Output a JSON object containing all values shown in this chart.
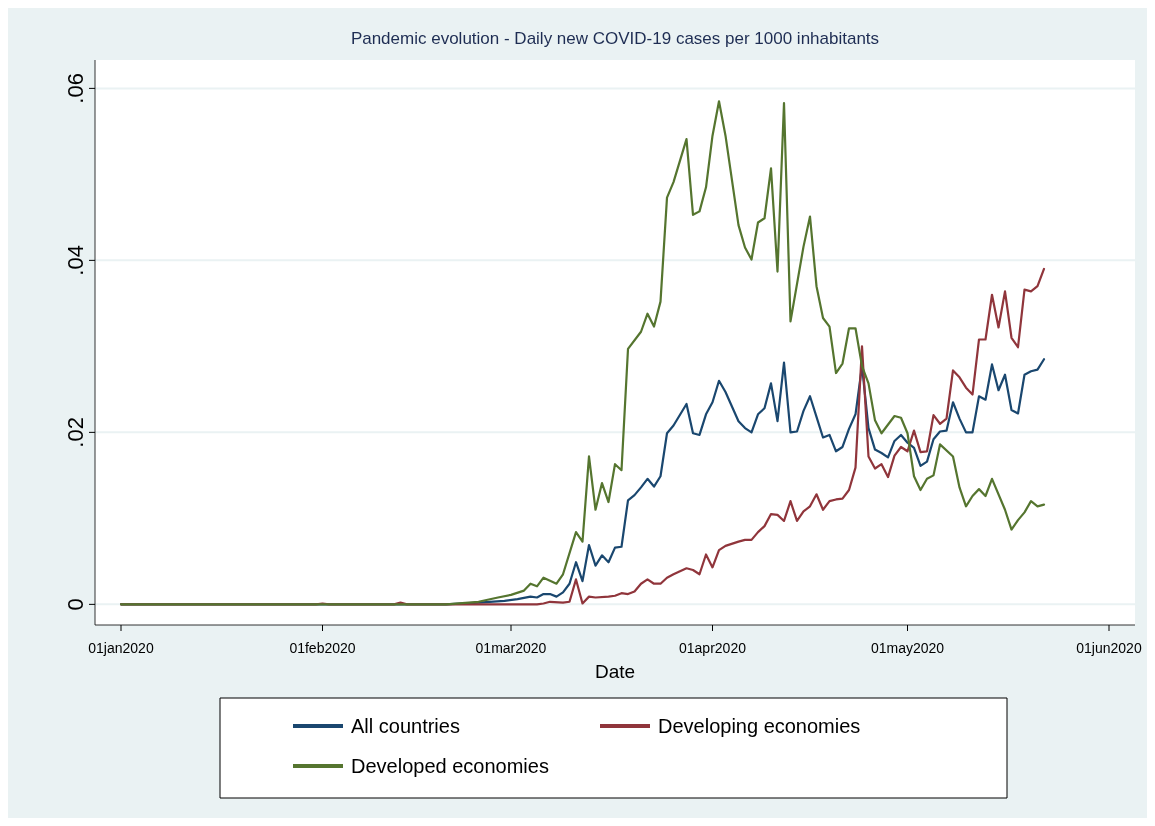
{
  "chart_data": {
    "type": "line",
    "title": "Pandemic evolution - Daily new COVID-19 cases per 1000 inhabitants",
    "xlabel": "Date",
    "xlim": [
      "2019-12-28",
      "2020-06-05"
    ],
    "ylim": [
      -0.0024,
      0.0633
    ],
    "xticks": [
      {
        "value": "2020-01-01",
        "label": "01jan2020"
      },
      {
        "value": "2020-02-01",
        "label": "01feb2020"
      },
      {
        "value": "2020-03-01",
        "label": "01mar2020"
      },
      {
        "value": "2020-04-01",
        "label": "01apr2020"
      },
      {
        "value": "2020-05-01",
        "label": "01may2020"
      },
      {
        "value": "2020-06-01",
        "label": "01jun2020"
      }
    ],
    "yticks": [
      0,
      {
        "value": 0.02,
        "label": ".02"
      },
      {
        "value": 0.04,
        "label": ".04"
      },
      {
        "value": 0.06,
        "label": ".06"
      }
    ],
    "grid": "y",
    "legend": "bottom",
    "line_style": "solid",
    "marker": "none",
    "series": [
      {
        "name": "All countries",
        "color": "#1a476f",
        "x": [
          "2020-01-01",
          "2020-02-20",
          "2020-02-25",
          "2020-02-29",
          "2020-03-02",
          "2020-03-04",
          "2020-03-05",
          "2020-03-06",
          "2020-03-07",
          "2020-03-08",
          "2020-03-09",
          "2020-03-10",
          "2020-03-11",
          "2020-03-12",
          "2020-03-13",
          "2020-03-14",
          "2020-03-15",
          "2020-03-16",
          "2020-03-17",
          "2020-03-18",
          "2020-03-19",
          "2020-03-20",
          "2020-03-21",
          "2020-03-22",
          "2020-03-23",
          "2020-03-24",
          "2020-03-25",
          "2020-03-26",
          "2020-03-28",
          "2020-03-29",
          "2020-03-30",
          "2020-03-31",
          "2020-04-01",
          "2020-04-02",
          "2020-04-03",
          "2020-04-05",
          "2020-04-06",
          "2020-04-07",
          "2020-04-08",
          "2020-04-09",
          "2020-04-10",
          "2020-04-11",
          "2020-04-12",
          "2020-04-13",
          "2020-04-14",
          "2020-04-15",
          "2020-04-16",
          "2020-04-17",
          "2020-04-18",
          "2020-04-19",
          "2020-04-20",
          "2020-04-21",
          "2020-04-22",
          "2020-04-23",
          "2020-04-24",
          "2020-04-25",
          "2020-04-26",
          "2020-04-27",
          "2020-04-28",
          "2020-04-29",
          "2020-04-30",
          "2020-05-01",
          "2020-05-02",
          "2020-05-03",
          "2020-05-04",
          "2020-05-05",
          "2020-05-06",
          "2020-05-07",
          "2020-05-08",
          "2020-05-09",
          "2020-05-10",
          "2020-05-11",
          "2020-05-12",
          "2020-05-13",
          "2020-05-14",
          "2020-05-15",
          "2020-05-16",
          "2020-05-17",
          "2020-05-18",
          "2020-05-19",
          "2020-05-20",
          "2020-05-21",
          "2020-05-22"
        ],
        "values": [
          0,
          0,
          0.0002,
          0.0004,
          0.0006,
          0.0009,
          0.0008,
          0.0012,
          0.0012,
          0.0009,
          0.0014,
          0.0024,
          0.0049,
          0.0027,
          0.0069,
          0.0045,
          0.0057,
          0.0049,
          0.0066,
          0.0067,
          0.0121,
          0.0127,
          0.0136,
          0.0146,
          0.0137,
          0.0149,
          0.0199,
          0.0208,
          0.0233,
          0.0199,
          0.0197,
          0.0221,
          0.0235,
          0.026,
          0.0247,
          0.0213,
          0.0205,
          0.02,
          0.0221,
          0.0228,
          0.0257,
          0.0213,
          0.0281,
          0.02,
          0.0201,
          0.0225,
          0.0242,
          0.0218,
          0.0194,
          0.0197,
          0.0178,
          0.0183,
          0.0204,
          0.0221,
          0.0277,
          0.0205,
          0.018,
          0.0176,
          0.0171,
          0.019,
          0.0197,
          0.0188,
          0.0182,
          0.0161,
          0.0166,
          0.0192,
          0.0201,
          0.0202,
          0.0235,
          0.0216,
          0.02,
          0.02,
          0.0242,
          0.0238,
          0.0279,
          0.0249,
          0.0267,
          0.0226,
          0.0222,
          0.0267,
          0.0271,
          0.0273,
          0.0285
        ]
      },
      {
        "name": "Developing economies",
        "color": "#90353b",
        "x": [
          "2020-01-01",
          "2020-01-31",
          "2020-02-01",
          "2020-02-02",
          "2020-02-12",
          "2020-02-13",
          "2020-02-14",
          "2020-03-05",
          "2020-03-06",
          "2020-03-07",
          "2020-03-09",
          "2020-03-10",
          "2020-03-11",
          "2020-03-12",
          "2020-03-13",
          "2020-03-14",
          "2020-03-16",
          "2020-03-17",
          "2020-03-18",
          "2020-03-19",
          "2020-03-20",
          "2020-03-21",
          "2020-03-22",
          "2020-03-23",
          "2020-03-24",
          "2020-03-25",
          "2020-03-26",
          "2020-03-28",
          "2020-03-29",
          "2020-03-30",
          "2020-03-31",
          "2020-04-01",
          "2020-04-02",
          "2020-04-03",
          "2020-04-05",
          "2020-04-06",
          "2020-04-07",
          "2020-04-08",
          "2020-04-09",
          "2020-04-10",
          "2020-04-11",
          "2020-04-12",
          "2020-04-13",
          "2020-04-14",
          "2020-04-15",
          "2020-04-16",
          "2020-04-17",
          "2020-04-18",
          "2020-04-19",
          "2020-04-20",
          "2020-04-21",
          "2020-04-22",
          "2020-04-23",
          "2020-04-24",
          "2020-04-25",
          "2020-04-26",
          "2020-04-27",
          "2020-04-28",
          "2020-04-29",
          "2020-04-30",
          "2020-05-01",
          "2020-05-02",
          "2020-05-03",
          "2020-05-04",
          "2020-05-05",
          "2020-05-06",
          "2020-05-07",
          "2020-05-08",
          "2020-05-09",
          "2020-05-10",
          "2020-05-11",
          "2020-05-12",
          "2020-05-13",
          "2020-05-14",
          "2020-05-15",
          "2020-05-16",
          "2020-05-17",
          "2020-05-18",
          "2020-05-19",
          "2020-05-20",
          "2020-05-21",
          "2020-05-22"
        ],
        "values": [
          0,
          0,
          0.0001,
          0,
          0,
          0.0002,
          0,
          0,
          0.0001,
          0.0003,
          0.0002,
          0.0003,
          0.0029,
          0.0001,
          0.0009,
          0.0008,
          0.0009,
          0.001,
          0.0013,
          0.0012,
          0.0015,
          0.0024,
          0.0029,
          0.0024,
          0.0024,
          0.0031,
          0.0035,
          0.0042,
          0.004,
          0.0035,
          0.0058,
          0.0043,
          0.0063,
          0.0068,
          0.0073,
          0.0075,
          0.0075,
          0.0084,
          0.0091,
          0.0105,
          0.0104,
          0.0097,
          0.012,
          0.0097,
          0.0108,
          0.0114,
          0.0128,
          0.011,
          0.012,
          0.0122,
          0.0123,
          0.0133,
          0.0159,
          0.03,
          0.0172,
          0.0158,
          0.0163,
          0.0148,
          0.0173,
          0.0183,
          0.0178,
          0.0202,
          0.0177,
          0.0178,
          0.022,
          0.021,
          0.0216,
          0.0272,
          0.0264,
          0.0252,
          0.0244,
          0.0308,
          0.0308,
          0.036,
          0.0322,
          0.0364,
          0.031,
          0.0299,
          0.0366,
          0.0364,
          0.037,
          0.039
        ]
      },
      {
        "name": "Developed economies",
        "color": "#55752f",
        "x": [
          "2020-01-01",
          "2020-02-20",
          "2020-02-25",
          "2020-02-28",
          "2020-03-01",
          "2020-03-03",
          "2020-03-04",
          "2020-03-05",
          "2020-03-06",
          "2020-03-08",
          "2020-03-09",
          "2020-03-11",
          "2020-03-12",
          "2020-03-13",
          "2020-03-14",
          "2020-03-15",
          "2020-03-16",
          "2020-03-17",
          "2020-03-18",
          "2020-03-19",
          "2020-03-21",
          "2020-03-22",
          "2020-03-23",
          "2020-03-24",
          "2020-03-25",
          "2020-03-26",
          "2020-03-28",
          "2020-03-29",
          "2020-03-30",
          "2020-03-31",
          "2020-04-01",
          "2020-04-02",
          "2020-04-03",
          "2020-04-05",
          "2020-04-06",
          "2020-04-07",
          "2020-04-08",
          "2020-04-09",
          "2020-04-10",
          "2020-04-11",
          "2020-04-12",
          "2020-04-13",
          "2020-04-15",
          "2020-04-16",
          "2020-04-17",
          "2020-04-18",
          "2020-04-19",
          "2020-04-20",
          "2020-04-21",
          "2020-04-22",
          "2020-04-23",
          "2020-04-24",
          "2020-04-25",
          "2020-04-26",
          "2020-04-27",
          "2020-04-29",
          "2020-04-30",
          "2020-05-01",
          "2020-05-02",
          "2020-05-03",
          "2020-05-04",
          "2020-05-05",
          "2020-05-06",
          "2020-05-08",
          "2020-05-09",
          "2020-05-10",
          "2020-05-11",
          "2020-05-12",
          "2020-05-13",
          "2020-05-14",
          "2020-05-16",
          "2020-05-17",
          "2020-05-18",
          "2020-05-19",
          "2020-05-20",
          "2020-05-21",
          "2020-05-22"
        ],
        "values": [
          0,
          0,
          0.0003,
          0.0008,
          0.0011,
          0.0016,
          0.0024,
          0.0021,
          0.0031,
          0.0024,
          0.0035,
          0.0084,
          0.0073,
          0.0172,
          0.011,
          0.0141,
          0.0119,
          0.0163,
          0.0156,
          0.0297,
          0.0317,
          0.0338,
          0.0323,
          0.0352,
          0.0473,
          0.0491,
          0.0541,
          0.0453,
          0.0457,
          0.0485,
          0.0545,
          0.0585,
          0.0545,
          0.0441,
          0.0415,
          0.0401,
          0.0444,
          0.0449,
          0.0507,
          0.0387,
          0.0583,
          0.0329,
          0.0416,
          0.0451,
          0.037,
          0.0333,
          0.0323,
          0.0269,
          0.028,
          0.0321,
          0.0321,
          0.0277,
          0.0257,
          0.0214,
          0.0199,
          0.0219,
          0.0217,
          0.0199,
          0.0149,
          0.0133,
          0.0146,
          0.015,
          0.0186,
          0.0172,
          0.0136,
          0.0114,
          0.0126,
          0.0134,
          0.0126,
          0.0146,
          0.011,
          0.0087,
          0.0098,
          0.0107,
          0.012,
          0.0114,
          0.0116
        ]
      }
    ]
  }
}
